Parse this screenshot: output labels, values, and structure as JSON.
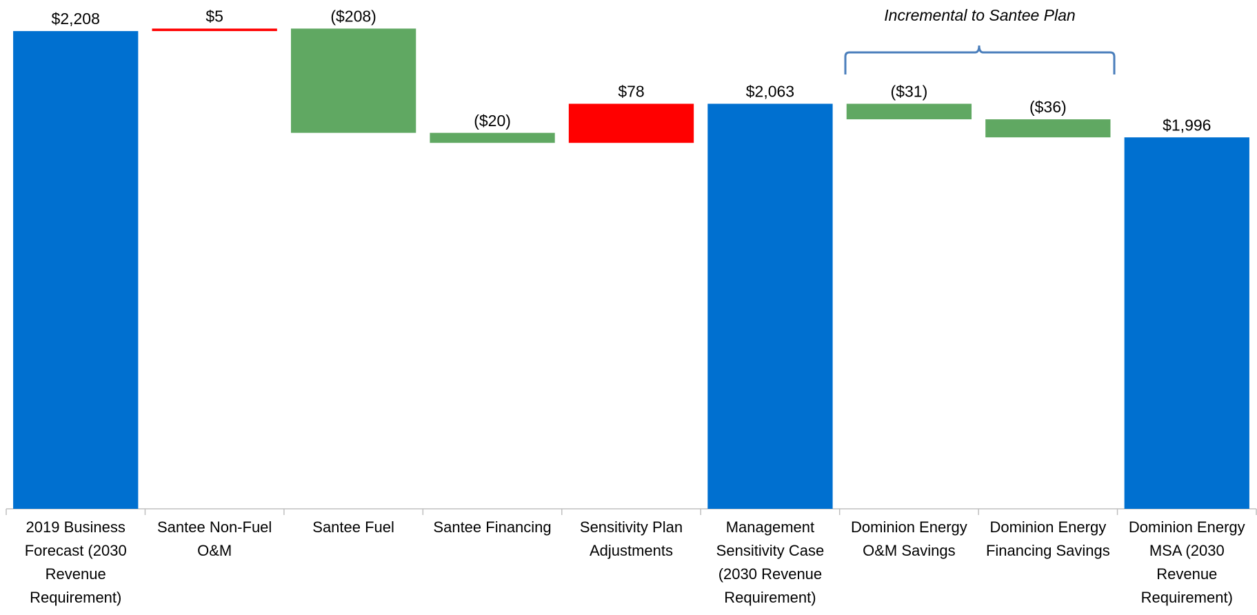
{
  "chart_data": {
    "type": "waterfall",
    "categories": [
      "2019 Business Forecast (2030 Revenue Requirement)",
      "Santee Non-Fuel O&M",
      "Santee Fuel",
      "Santee Financing",
      "Sensitivity Plan Adjustments",
      "Management Sensitivity Case (2030 Revenue Requirement)",
      "Dominion Energy O&M Savings",
      "Dominion Energy Financing Savings",
      "Dominion Energy MSA (2030 Revenue Requirement)"
    ],
    "values": [
      2208,
      5,
      -208,
      -20,
      78,
      2063,
      -31,
      -36,
      1996
    ],
    "value_labels": [
      "$2,208",
      "$5",
      "($208)",
      "($20)",
      "$78",
      "$2,063",
      "($31)",
      "($36)",
      "$1,996"
    ],
    "is_total": [
      true,
      false,
      false,
      false,
      false,
      true,
      false,
      false,
      true
    ],
    "colors": [
      "#0070d0",
      "#ff0000",
      "#60a862",
      "#60a862",
      "#ff0000",
      "#0070d0",
      "#60a862",
      "#60a862",
      "#0070d0"
    ],
    "ylim": [
      1255,
      2270
    ],
    "annotation": "Incremental to Santee Plan"
  }
}
